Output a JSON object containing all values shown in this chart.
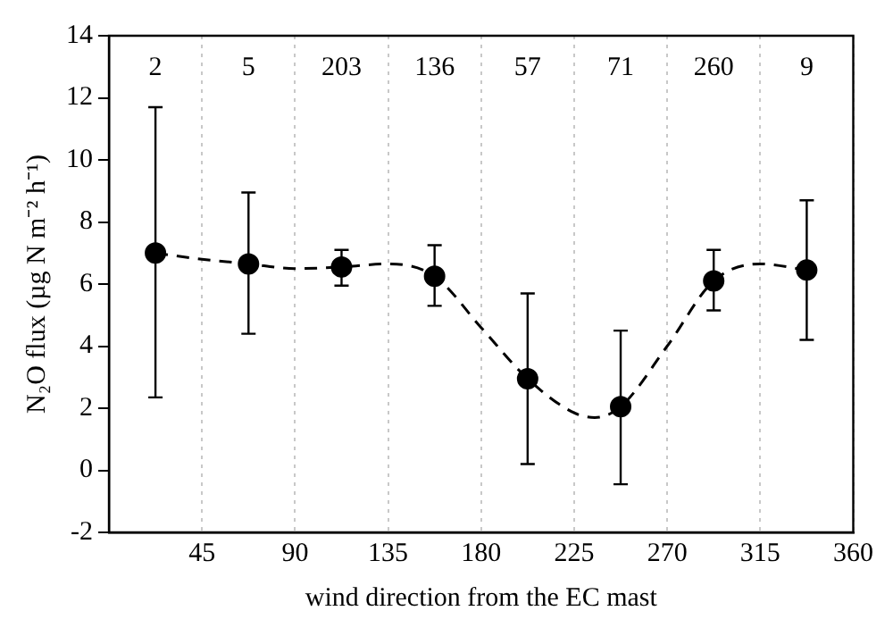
{
  "chart_data": {
    "type": "scatter",
    "xlabel": "wind direction from the EC mast",
    "ylabel": "N₂O flux (µg N m⁻² h⁻¹)",
    "x": [
      22.5,
      67.5,
      112.5,
      157.5,
      202.5,
      247.5,
      292.5,
      337.5
    ],
    "series": [
      {
        "type": "scatter",
        "color": "#000000",
        "marker": "circle",
        "values": [
          7.0,
          6.65,
          6.55,
          6.25,
          2.95,
          2.05,
          6.1,
          6.45
        ],
        "errors": [
          [
            2.35,
            11.7
          ],
          [
            4.4,
            8.95
          ],
          [
            5.95,
            7.1
          ],
          [
            5.3,
            7.25
          ],
          [
            0.2,
            5.7
          ],
          [
            -0.45,
            4.5
          ],
          [
            5.15,
            7.1
          ],
          [
            4.2,
            8.7
          ]
        ]
      },
      {
        "type": "line",
        "color": "#000000",
        "line_style": "dashed",
        "marker": "none",
        "x": [
          22.5,
          45,
          67.5,
          90,
          112.5,
          135,
          157.5,
          180,
          202.5,
          225,
          235,
          247.5,
          270,
          292.5,
          315,
          337.5
        ],
        "values": [
          7.0,
          6.8,
          6.65,
          6.5,
          6.55,
          6.65,
          6.25,
          4.6,
          2.95,
          1.85,
          1.7,
          2.05,
          4.0,
          6.1,
          6.65,
          6.45
        ]
      }
    ],
    "xlim": [
      0,
      360
    ],
    "xticks": [
      45,
      90,
      135,
      180,
      225,
      270,
      315,
      360
    ],
    "ylim": [
      -2,
      14
    ],
    "yticks": [
      -2,
      0,
      2,
      4,
      6,
      8,
      10,
      12,
      14
    ],
    "grid": "x",
    "legend": false,
    "annotations": [
      "2",
      "5",
      "203",
      "136",
      "57",
      "71",
      "260",
      "9"
    ]
  }
}
